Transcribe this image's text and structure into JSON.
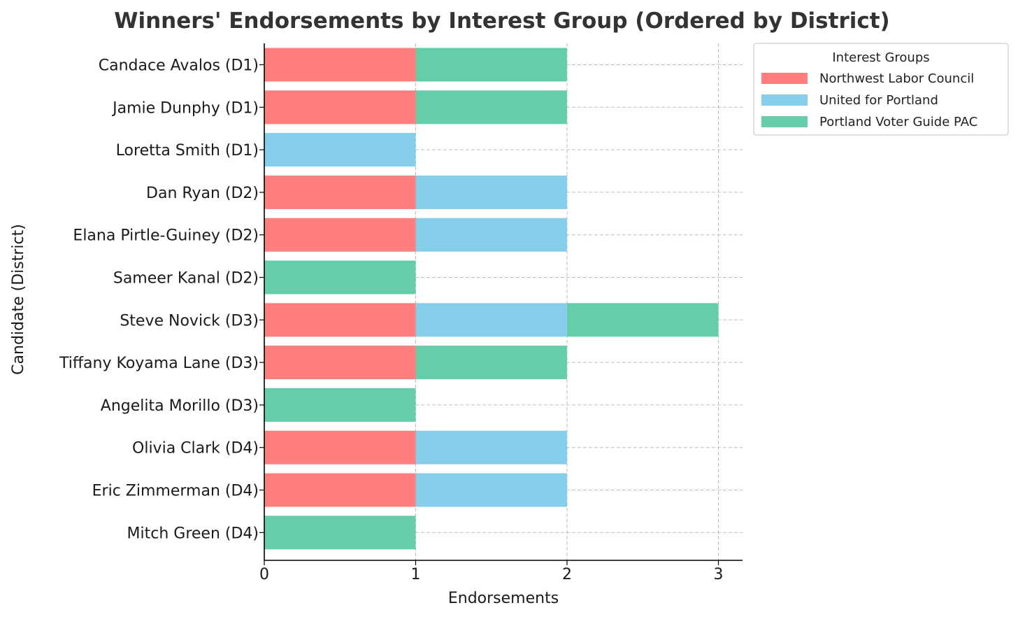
{
  "chart_data": {
    "type": "bar",
    "orientation": "horizontal",
    "stacked": true,
    "title": "Winners' Endorsements by Interest Group (Ordered by District)",
    "xlabel": "Endorsements",
    "ylabel": "Candidate (District)",
    "xlim": [
      0,
      3.15
    ],
    "xticks": [
      "0",
      "1",
      "2",
      "3"
    ],
    "grid": true,
    "legend_title": "Interest Groups",
    "legend_position": "outside-top-right",
    "categories": [
      "Candace Avalos (D1)",
      "Jamie Dunphy (D1)",
      "Loretta Smith (D1)",
      "Dan Ryan (D2)",
      "Elana Pirtle-Guiney (D2)",
      "Sameer Kanal (D2)",
      "Steve Novick (D3)",
      "Tiffany Koyama Lane (D3)",
      "Angelita Morillo (D3)",
      "Olivia Clark (D4)",
      "Eric Zimmerman (D4)",
      "Mitch Green (D4)"
    ],
    "series": [
      {
        "name": "Northwest Labor Council",
        "color": "#ff7f7f",
        "values": [
          1,
          1,
          0,
          1,
          1,
          0,
          1,
          1,
          0,
          1,
          1,
          0
        ]
      },
      {
        "name": "United for Portland",
        "color": "#87ceeb",
        "values": [
          0,
          0,
          1,
          1,
          1,
          0,
          1,
          0,
          0,
          1,
          1,
          0
        ]
      },
      {
        "name": "Portland Voter Guide PAC",
        "color": "#66cdaa",
        "values": [
          1,
          1,
          0,
          0,
          0,
          1,
          1,
          1,
          1,
          0,
          0,
          1
        ]
      }
    ]
  }
}
